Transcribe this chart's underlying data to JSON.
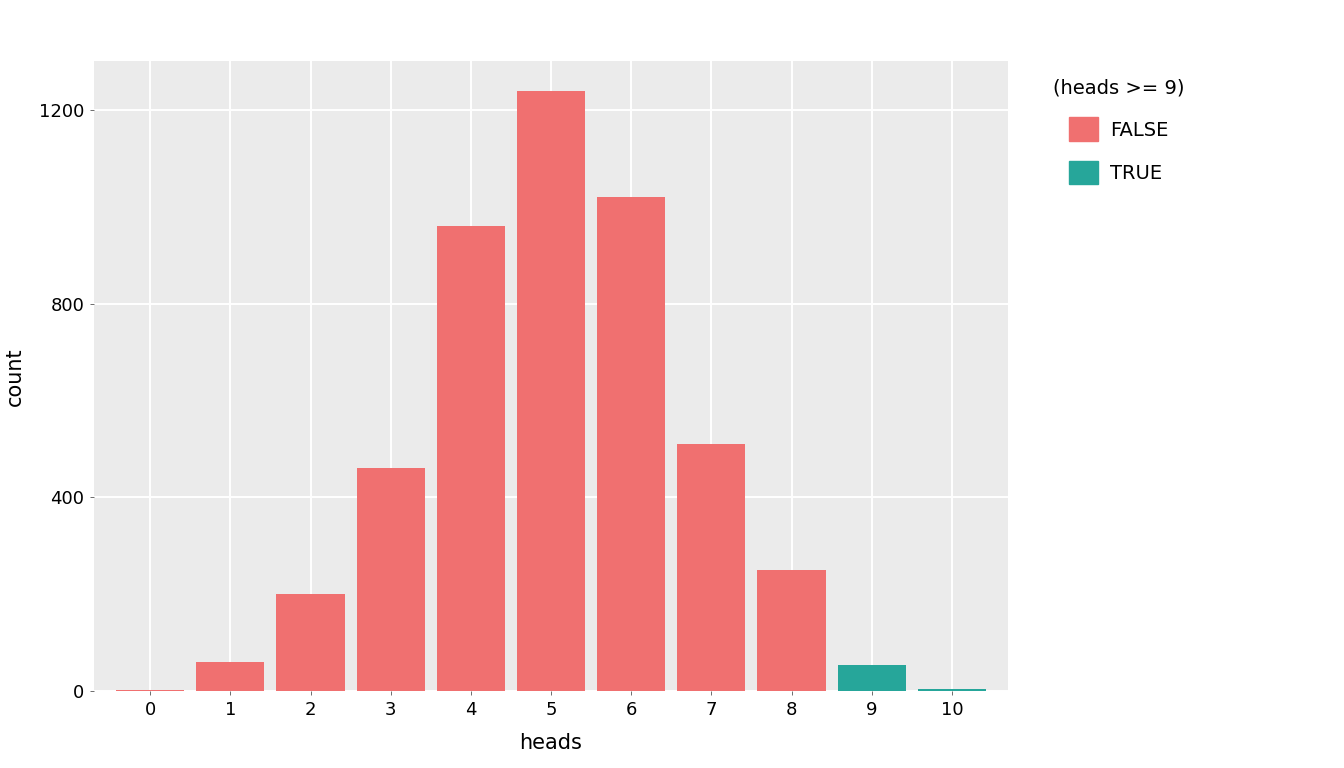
{
  "categories": [
    0,
    1,
    2,
    3,
    4,
    5,
    6,
    7,
    8,
    9,
    10
  ],
  "false_values": [
    2,
    60,
    200,
    460,
    960,
    1240,
    1020,
    510,
    250,
    0,
    0
  ],
  "true_values": [
    0,
    0,
    0,
    0,
    0,
    0,
    0,
    0,
    0,
    55,
    4
  ],
  "false_color": "#F07070",
  "true_color": "#26A69A",
  "figure_background": "#FFFFFF",
  "panel_background": "#EBEBEB",
  "xlabel": "heads",
  "ylabel": "count",
  "legend_title": "(heads >= 9)",
  "legend_false": "FALSE",
  "legend_true": "TRUE",
  "ylim": [
    0,
    1300
  ],
  "yticks": [
    0,
    400,
    800,
    1200
  ],
  "xticks": [
    0,
    1,
    2,
    3,
    4,
    5,
    6,
    7,
    8,
    9,
    10
  ],
  "bar_width": 0.85,
  "grid_color": "#FFFFFF",
  "grid_linewidth": 1.4,
  "tick_labelsize": 13,
  "axis_labelsize": 15,
  "legend_fontsize": 14,
  "legend_title_fontsize": 14
}
